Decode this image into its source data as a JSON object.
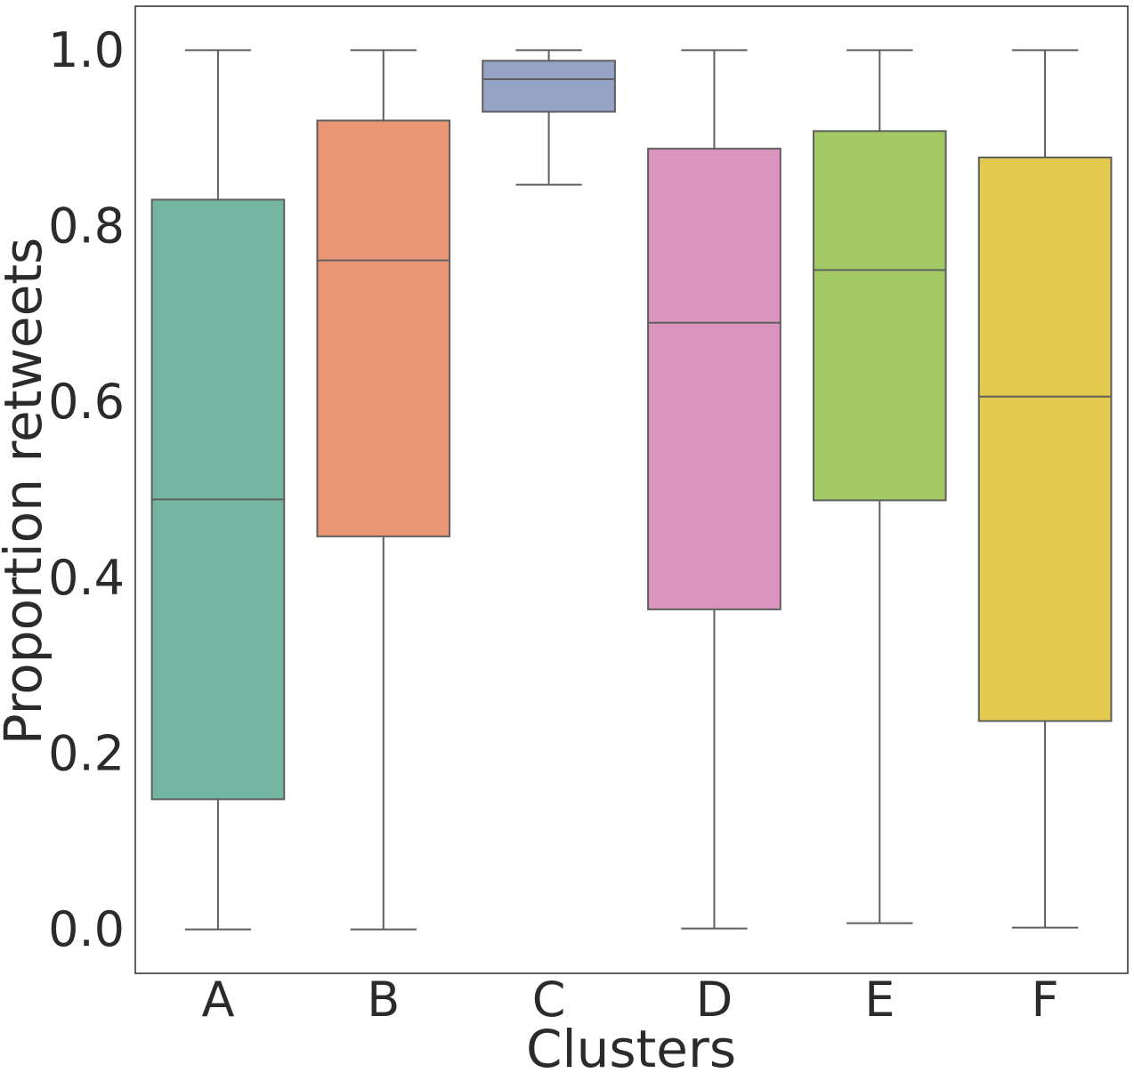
{
  "chart_data": {
    "type": "box",
    "title": "",
    "xlabel": "Clusters",
    "ylabel": "Proportion retweets",
    "ylim": [
      -0.05,
      1.05
    ],
    "yticks": [
      "0.0",
      "0.2",
      "0.4",
      "0.6",
      "0.8",
      "1.0"
    ],
    "grid": false,
    "categories": [
      "A",
      "B",
      "C",
      "D",
      "E",
      "F"
    ],
    "boxes": [
      {
        "name": "A",
        "whisker_low": 0.0,
        "q1": 0.148,
        "median": 0.489,
        "q3": 0.83,
        "whisker_high": 1.0,
        "color": "#73b5a0"
      },
      {
        "name": "B",
        "whisker_low": 0.0,
        "q1": 0.447,
        "median": 0.761,
        "q3": 0.92,
        "whisker_high": 1.0,
        "color": "#e99674"
      },
      {
        "name": "C",
        "whisker_low": 0.847,
        "q1": 0.93,
        "median": 0.967,
        "q3": 0.988,
        "whisker_high": 1.0,
        "color": "#95a4c4"
      },
      {
        "name": "D",
        "whisker_low": 0.001,
        "q1": 0.364,
        "median": 0.69,
        "q3": 0.888,
        "whisker_high": 1.0,
        "color": "#dc95bf"
      },
      {
        "name": "E",
        "whisker_low": 0.007,
        "q1": 0.488,
        "median": 0.75,
        "q3": 0.908,
        "whisker_high": 1.0,
        "color": "#a3c966"
      },
      {
        "name": "F",
        "whisker_low": 0.002,
        "q1": 0.237,
        "median": 0.606,
        "q3": 0.878,
        "whisker_high": 1.0,
        "color": "#e3c94d"
      }
    ]
  }
}
